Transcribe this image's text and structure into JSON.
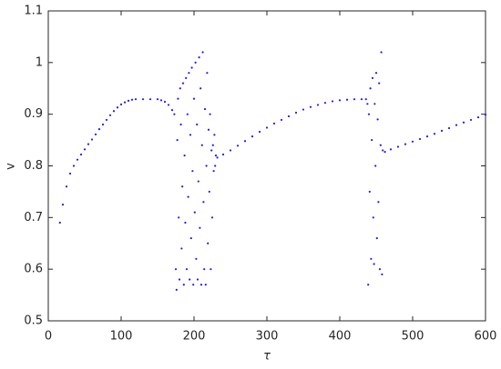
{
  "chart_data": {
    "type": "scatter",
    "xlabel": "τ",
    "ylabel": "v",
    "color": "#1f1fe0",
    "xlim": [
      0,
      600
    ],
    "ylim": [
      0.5,
      1.1
    ],
    "xticks": [
      0,
      100,
      200,
      300,
      400,
      500,
      600
    ],
    "yticks": [
      0.5,
      0.6,
      0.7,
      0.8,
      0.9,
      1,
      1.1
    ],
    "x": [
      16,
      20,
      25,
      30,
      35,
      40,
      45,
      50,
      55,
      60,
      65,
      70,
      75,
      80,
      85,
      90,
      95,
      100,
      105,
      110,
      115,
      120,
      130,
      140,
      150,
      155,
      160,
      165,
      170,
      173,
      175,
      176,
      177,
      178,
      179,
      180,
      181,
      182,
      183,
      184,
      185,
      186,
      187,
      188,
      189,
      190,
      191,
      192,
      193,
      194,
      195,
      196,
      197,
      198,
      199,
      200,
      201,
      202,
      203,
      204,
      205,
      206,
      207,
      208,
      209,
      210,
      211,
      212,
      213,
      214,
      215,
      216,
      217,
      218,
      219,
      220,
      221,
      222,
      223,
      224,
      225,
      226,
      227,
      228,
      229,
      230,
      232,
      240,
      250,
      260,
      270,
      280,
      290,
      300,
      310,
      320,
      330,
      340,
      350,
      360,
      370,
      380,
      390,
      400,
      410,
      420,
      430,
      436,
      438,
      439,
      440,
      441,
      442,
      443,
      444,
      445,
      446,
      447,
      448,
      449,
      450,
      451,
      452,
      453,
      454,
      455,
      456,
      457,
      458,
      459,
      462,
      470,
      480,
      490,
      500,
      510,
      520,
      530,
      540,
      550,
      560,
      570,
      580,
      590,
      600
    ],
    "values": [
      0.69,
      0.725,
      0.76,
      0.785,
      0.8,
      0.812,
      0.822,
      0.832,
      0.842,
      0.851,
      0.861,
      0.871,
      0.88,
      0.889,
      0.898,
      0.906,
      0.913,
      0.919,
      0.923,
      0.926,
      0.928,
      0.929,
      0.929,
      0.929,
      0.929,
      0.927,
      0.924,
      0.918,
      0.908,
      0.9,
      0.6,
      0.56,
      0.85,
      0.93,
      0.7,
      0.58,
      0.95,
      0.88,
      0.64,
      0.76,
      0.96,
      0.57,
      0.82,
      0.69,
      0.97,
      0.6,
      0.9,
      0.74,
      0.98,
      0.58,
      0.86,
      0.66,
      0.99,
      0.79,
      0.57,
      0.93,
      0.71,
      1.0,
      0.62,
      0.88,
      0.58,
      0.77,
      1.01,
      0.68,
      0.95,
      0.57,
      0.84,
      1.02,
      0.73,
      0.6,
      0.91,
      0.57,
      0.8,
      0.98,
      0.65,
      0.87,
      0.75,
      0.9,
      0.6,
      0.83,
      0.7,
      0.84,
      0.79,
      0.86,
      0.8,
      0.82,
      0.816,
      0.822,
      0.83,
      0.839,
      0.848,
      0.857,
      0.866,
      0.874,
      0.882,
      0.889,
      0.896,
      0.903,
      0.909,
      0.914,
      0.918,
      0.922,
      0.925,
      0.927,
      0.928,
      0.929,
      0.929,
      0.929,
      0.92,
      0.57,
      0.9,
      0.75,
      0.95,
      0.62,
      0.85,
      0.97,
      0.7,
      0.61,
      0.92,
      0.8,
      0.98,
      0.66,
      0.89,
      0.73,
      0.96,
      0.6,
      0.84,
      1.02,
      0.59,
      0.83,
      0.827,
      0.832,
      0.837,
      0.842,
      0.847,
      0.852,
      0.857,
      0.862,
      0.868,
      0.873,
      0.879,
      0.884,
      0.889,
      0.894,
      0.899
    ]
  }
}
